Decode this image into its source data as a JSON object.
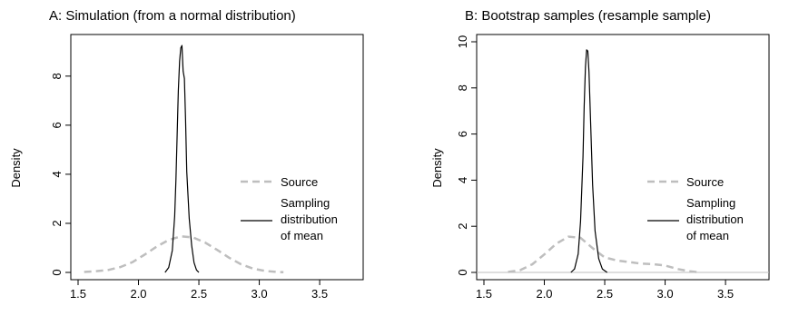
{
  "chart_data": [
    {
      "type": "line",
      "title": "A: Simulation (from a normal distribution)",
      "xlabel": "",
      "ylabel": "Density",
      "xlim": [
        1.5,
        3.8
      ],
      "ylim": [
        0,
        9.4
      ],
      "xticks": [
        "1.5",
        "2.0",
        "2.5",
        "3.0",
        "3.5"
      ],
      "yticks": [
        "0",
        "2",
        "4",
        "6",
        "8"
      ],
      "grid": false,
      "legend": "right",
      "zero_line": false,
      "colors": {
        "source": "#bebebe",
        "sampling": "#000000"
      },
      "series": [
        {
          "name": "Source",
          "style": "dashed",
          "x": [
            1.55,
            1.65,
            1.75,
            1.85,
            1.95,
            2.05,
            2.15,
            2.25,
            2.35,
            2.45,
            2.55,
            2.65,
            2.75,
            2.85,
            2.95,
            3.05,
            3.15,
            3.2
          ],
          "y": [
            0.02,
            0.05,
            0.1,
            0.22,
            0.42,
            0.72,
            1.05,
            1.32,
            1.47,
            1.43,
            1.22,
            0.92,
            0.6,
            0.33,
            0.15,
            0.06,
            0.02,
            0.01
          ]
        },
        {
          "name": "Sampling distribution of mean",
          "style": "solid",
          "x": [
            2.22,
            2.25,
            2.28,
            2.3,
            2.31,
            2.32,
            2.33,
            2.34,
            2.35,
            2.36,
            2.37,
            2.38,
            2.39,
            2.4,
            2.42,
            2.44,
            2.46,
            2.48,
            2.5
          ],
          "y": [
            0.0,
            0.2,
            0.9,
            2.3,
            3.8,
            5.6,
            7.4,
            8.6,
            9.15,
            9.25,
            8.2,
            7.9,
            6.2,
            4.1,
            2.2,
            1.1,
            0.4,
            0.1,
            0.0
          ]
        }
      ]
    },
    {
      "type": "line",
      "title": "B: Bootstrap samples (resample sample)",
      "xlabel": "",
      "ylabel": "Density",
      "xlim": [
        1.5,
        3.8
      ],
      "ylim": [
        0,
        10
      ],
      "xticks": [
        "1.5",
        "2.0",
        "2.5",
        "3.0",
        "3.5"
      ],
      "yticks": [
        "0",
        "2",
        "4",
        "6",
        "8",
        "10"
      ],
      "grid": false,
      "legend": "right",
      "zero_line": true,
      "colors": {
        "source": "#bebebe",
        "sampling": "#000000",
        "zero_line": "#bebebe"
      },
      "series": [
        {
          "name": "Source",
          "style": "dashed",
          "x": [
            1.7,
            1.8,
            1.9,
            2.0,
            2.1,
            2.2,
            2.3,
            2.4,
            2.5,
            2.6,
            2.7,
            2.8,
            2.9,
            3.0,
            3.1,
            3.2,
            3.27
          ],
          "y": [
            0.02,
            0.1,
            0.35,
            0.78,
            1.25,
            1.55,
            1.5,
            1.05,
            0.65,
            0.52,
            0.45,
            0.38,
            0.36,
            0.3,
            0.15,
            0.05,
            0.01
          ]
        },
        {
          "name": "Sampling distribution of mean",
          "style": "solid",
          "x": [
            2.22,
            2.25,
            2.28,
            2.3,
            2.32,
            2.33,
            2.34,
            2.35,
            2.36,
            2.37,
            2.38,
            2.4,
            2.42,
            2.45,
            2.48,
            2.52
          ],
          "y": [
            0.0,
            0.15,
            0.8,
            2.2,
            5.0,
            7.2,
            8.9,
            9.65,
            9.6,
            8.7,
            7.0,
            3.8,
            1.8,
            0.6,
            0.15,
            0.0
          ]
        }
      ]
    }
  ],
  "legend_labels": {
    "source": [
      "Source"
    ],
    "sampling": [
      "Sampling",
      "distribution",
      "of mean"
    ]
  }
}
